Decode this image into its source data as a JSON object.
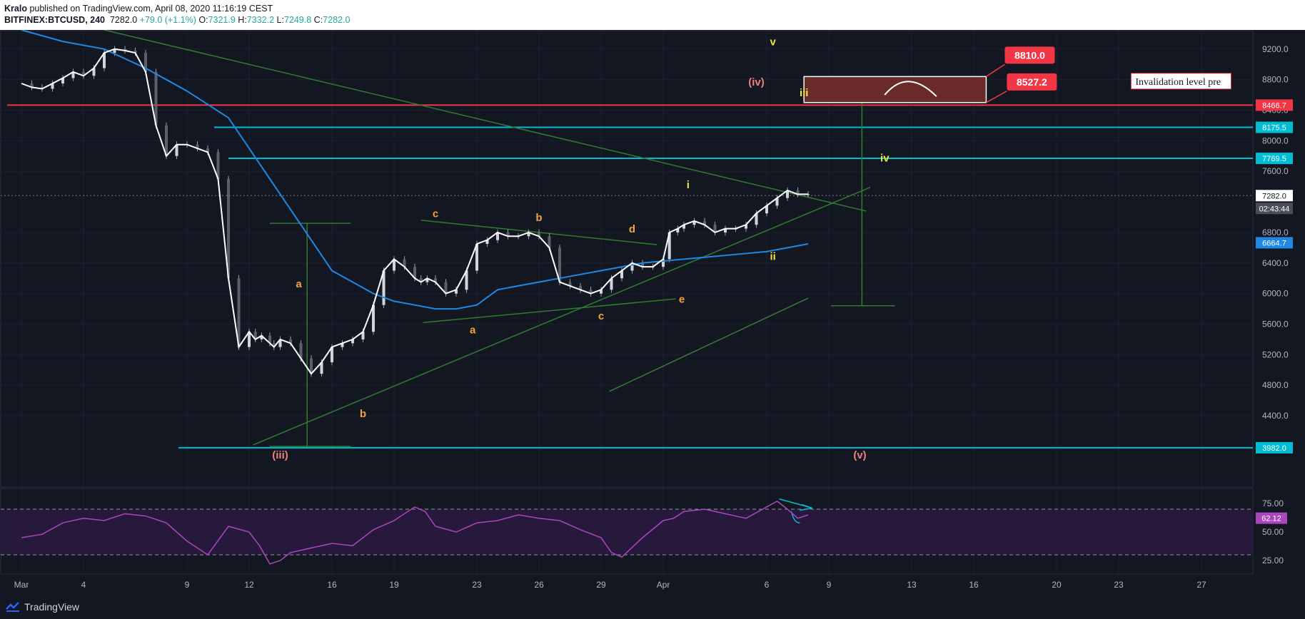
{
  "header": {
    "author": "Kralo",
    "published": "published on TradingView.com, April 08, 2020 11:16:19 CEST",
    "symbol": "BITFINEX:BTCUSD, 240",
    "last": "7282.0",
    "change": "+79.0 (+1.1%)",
    "o_label": "O:",
    "o": "7321.9",
    "h_label": "H:",
    "h": "7332.2",
    "l_label": "L:",
    "l": "7249.8",
    "c_label": "C:",
    "c": "7282.0"
  },
  "footer": {
    "brand": "TradingView"
  },
  "colors": {
    "background": "#131722",
    "cyan": "#00bcd4",
    "red": "#f23645",
    "green": "#2e7d32",
    "ema": "#1e88e5",
    "rsi": "#ab47bc",
    "wave_orange": "#f7a33a",
    "wave_yellow": "#f0e442",
    "wave_pink": "#ef7f7f"
  },
  "chart_data": {
    "type": "line",
    "title": "BITFINEX:BTCUSD, 240",
    "ylim": [
      3850,
      9450
    ],
    "y_ticks": [
      "9200.0",
      "8800.0",
      "8400.0",
      "8000.0",
      "7600.0",
      "6800.0",
      "6400.0",
      "6000.0",
      "5600.0",
      "5200.0",
      "4800.0",
      "4400.0"
    ],
    "x_ticks": [
      {
        "day": 0,
        "label": "Mar"
      },
      {
        "day": 3,
        "label": "4"
      },
      {
        "day": 8,
        "label": "9"
      },
      {
        "day": 11,
        "label": "12"
      },
      {
        "day": 15,
        "label": "16"
      },
      {
        "day": 18,
        "label": "19"
      },
      {
        "day": 22,
        "label": "23"
      },
      {
        "day": 25,
        "label": "26"
      },
      {
        "day": 28,
        "label": "29"
      },
      {
        "day": 31,
        "label": "Apr"
      },
      {
        "day": 36,
        "label": "6"
      },
      {
        "day": 39,
        "label": "9"
      },
      {
        "day": 43,
        "label": "13"
      },
      {
        "day": 46,
        "label": "16"
      },
      {
        "day": 50,
        "label": "20"
      },
      {
        "day": 53,
        "label": "23"
      },
      {
        "day": 57,
        "label": "27"
      }
    ],
    "price_series": {
      "name": "BTCUSD close",
      "x": [
        0,
        0.5,
        1,
        1.5,
        2,
        2.5,
        3,
        3.5,
        4,
        4.5,
        5,
        5.5,
        6,
        6.5,
        7,
        7.5,
        8,
        8.5,
        9,
        9.5,
        10,
        10.5,
        11,
        11.3,
        11.6,
        12,
        12.2,
        12.5,
        13,
        13.5,
        14,
        14.5,
        15,
        15.5,
        16,
        16.5,
        17,
        17.5,
        18,
        18.5,
        19,
        19.3,
        19.6,
        20,
        20.5,
        21,
        21.5,
        22,
        22.5,
        23,
        23.5,
        24,
        24.5,
        25,
        25.5,
        26,
        26.5,
        27,
        27.5,
        28,
        28.5,
        29,
        29.5,
        30,
        30.5,
        31,
        31.3,
        31.7,
        32,
        32.5,
        33,
        33.5,
        34,
        34.5,
        35,
        35.5,
        36,
        36.5,
        37,
        37.5,
        38
      ],
      "y": [
        8750,
        8700,
        8680,
        8750,
        8820,
        8900,
        8850,
        8950,
        9150,
        9200,
        9180,
        9150,
        8900,
        8200,
        7800,
        7950,
        7950,
        7900,
        7850,
        7500,
        6200,
        5300,
        5500,
        5400,
        5450,
        5350,
        5300,
        5400,
        5350,
        5150,
        4950,
        5100,
        5300,
        5350,
        5400,
        5500,
        5850,
        6300,
        6450,
        6350,
        6200,
        6150,
        6200,
        6150,
        6000,
        6050,
        6300,
        6650,
        6700,
        6800,
        6750,
        6750,
        6800,
        6750,
        6600,
        6150,
        6100,
        6050,
        6000,
        6050,
        6200,
        6300,
        6400,
        6350,
        6350,
        6450,
        6800,
        6850,
        6900,
        6950,
        6900,
        6800,
        6850,
        6850,
        6900,
        7050,
        7150,
        7250,
        7350,
        7300,
        7300
      ]
    },
    "ema_series": {
      "x": [
        0,
        2,
        4,
        6,
        8,
        10,
        12,
        14,
        15,
        17,
        18,
        19,
        20,
        21,
        22,
        23,
        24,
        26,
        28,
        30,
        32,
        34,
        36,
        37,
        38
      ],
      "y": [
        9450,
        9300,
        9200,
        8950,
        8650,
        8300,
        7500,
        6700,
        6300,
        6000,
        5900,
        5850,
        5800,
        5800,
        5850,
        6050,
        6100,
        6200,
        6300,
        6400,
        6450,
        6500,
        6550,
        6600,
        6650
      ]
    },
    "rsi": {
      "ylim": [
        15,
        85
      ],
      "ticks": [
        "75.00",
        "50.00",
        "25.00"
      ],
      "upper": 70,
      "lower": 30,
      "last": "62.12",
      "x": [
        0,
        1,
        2,
        3,
        4,
        5,
        6,
        7,
        8,
        9,
        10,
        11,
        11.5,
        12,
        12.5,
        13,
        14,
        15,
        16,
        17,
        18,
        19,
        19.5,
        20,
        21,
        22,
        23,
        24,
        25,
        26,
        27,
        28,
        28.5,
        29,
        30,
        31,
        31.5,
        32,
        33,
        34,
        35,
        36,
        36.5,
        37,
        37.5,
        38
      ],
      "y": [
        45,
        48,
        58,
        62,
        60,
        66,
        64,
        58,
        42,
        30,
        55,
        50,
        38,
        22,
        25,
        32,
        36,
        40,
        38,
        52,
        60,
        72,
        68,
        55,
        50,
        58,
        60,
        65,
        62,
        60,
        52,
        45,
        32,
        28,
        45,
        60,
        62,
        68,
        70,
        66,
        62,
        72,
        77,
        70,
        62,
        65
      ]
    },
    "levels": [
      {
        "price": 8466.7,
        "label": "8466.7",
        "color": "#f23645"
      },
      {
        "price": 8175.5,
        "label": "8175.5",
        "color": "#00bcd4"
      },
      {
        "price": 7769.5,
        "label": "7769.5",
        "color": "#00bcd4"
      },
      {
        "price": 3982.0,
        "label": "3982.0",
        "color": "#00bcd4"
      }
    ],
    "current": {
      "price": 7282.0,
      "label": "7282.0",
      "countdown": "02:43:44"
    },
    "ema_last": {
      "price": 6664.7,
      "label": "6664.7"
    },
    "targets": [
      {
        "label": "8810.0"
      },
      {
        "label": "8527.2"
      }
    ],
    "note": "Invalidation level pre",
    "wave_labels": [
      {
        "text": "v",
        "day": 36.3,
        "price": 9250,
        "color": "#f0e442"
      },
      {
        "text": "(iv)",
        "day": 35.5,
        "price": 8720,
        "color": "#ef7f7f"
      },
      {
        "text": "iii",
        "day": 37.8,
        "price": 8580,
        "color": "#f0e442"
      },
      {
        "text": "iv",
        "day": 41.7,
        "price": 7730,
        "color": "#f0e442"
      },
      {
        "text": "i",
        "day": 32.2,
        "price": 7380,
        "color": "#f0e442"
      },
      {
        "text": "ii",
        "day": 36.3,
        "price": 6440,
        "color": "#f0e442"
      },
      {
        "text": "c",
        "day": 20.0,
        "price": 7000,
        "color": "#f7a33a"
      },
      {
        "text": "b",
        "day": 25.0,
        "price": 6950,
        "color": "#f7a33a"
      },
      {
        "text": "d",
        "day": 29.5,
        "price": 6800,
        "color": "#f7a33a"
      },
      {
        "text": "a",
        "day": 13.4,
        "price": 6080,
        "color": "#f7a33a"
      },
      {
        "text": "a",
        "day": 21.8,
        "price": 5480,
        "color": "#f7a33a"
      },
      {
        "text": "c",
        "day": 28.0,
        "price": 5660,
        "color": "#f7a33a"
      },
      {
        "text": "e",
        "day": 31.9,
        "price": 5880,
        "color": "#f7a33a"
      },
      {
        "text": "b",
        "day": 16.5,
        "price": 4380,
        "color": "#f7a33a"
      },
      {
        "text": "(iii)",
        "day": 12.5,
        "price": 3840,
        "color": "#ef7f7f"
      },
      {
        "text": "(v)",
        "day": 40.5,
        "price": 3840,
        "color": "#ef7f7f"
      }
    ]
  }
}
